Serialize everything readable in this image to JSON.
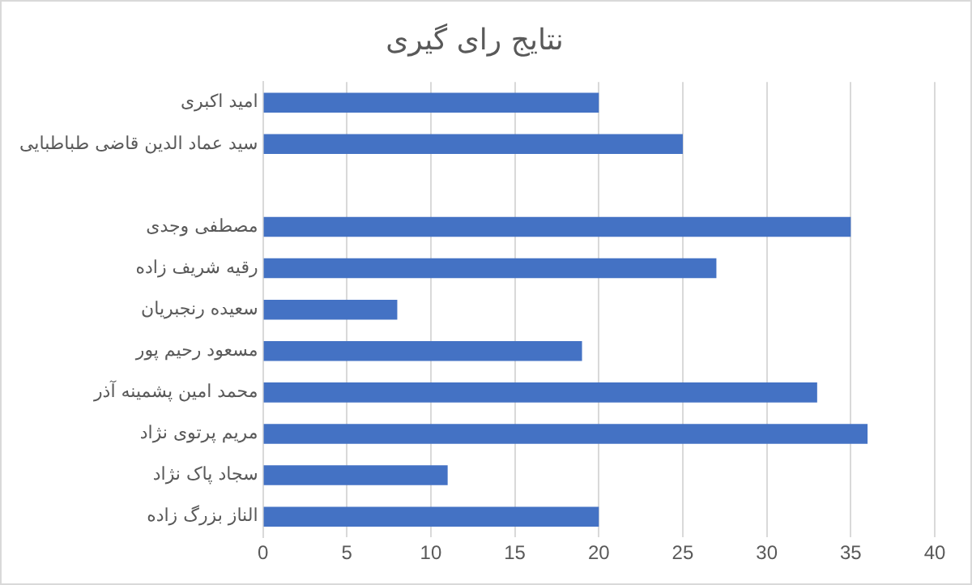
{
  "chart_data": {
    "type": "bar",
    "orientation": "horizontal",
    "title": "نتایج رای گیری",
    "categories": [
      "امید اکبری",
      "سید عماد الدین قاضی طباطبایی",
      null,
      "مصطفی وجدی",
      "رقیه شریف زاده",
      "سعیده رنجبریان",
      "مسعود رحیم پور",
      "محمد امین پشمینه آذر",
      "مریم پرتوی نژاد",
      "سجاد پاک نژاد",
      "الناز بزرگ زاده"
    ],
    "values": [
      20,
      25,
      null,
      35,
      27,
      8,
      19,
      33,
      36,
      11,
      20
    ],
    "color": "#4472c4",
    "xlim": [
      0,
      40
    ],
    "xticks": [
      0,
      5,
      10,
      15,
      20,
      25,
      30,
      35,
      40
    ],
    "grid": "x"
  }
}
